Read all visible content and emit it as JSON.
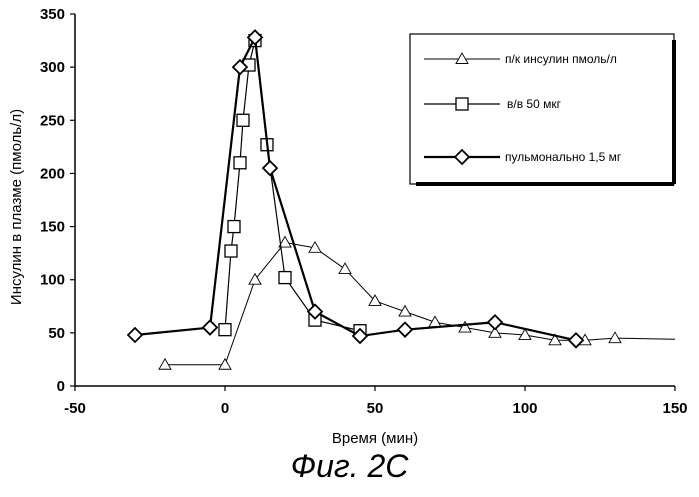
{
  "caption": "Фиг. 2С",
  "chart_data": {
    "type": "line",
    "xlabel": "Время (мин)",
    "ylabel": "Инсулин в плазме (пмоль/л)",
    "xlim": [
      -50,
      150
    ],
    "ylim": [
      0,
      350
    ],
    "xticks": [
      "-50",
      "0",
      "50",
      "100",
      "150"
    ],
    "yticks": [
      "0",
      "50",
      "100",
      "150",
      "200",
      "250",
      "300",
      "350"
    ],
    "grid": false,
    "legend_position": "top-right",
    "series": [
      {
        "name": "п/к инсулин пмоль/л",
        "marker": "triangle",
        "stroke_width": 1,
        "x": [
          -20,
          0,
          10,
          20,
          30,
          40,
          50,
          60,
          70,
          80,
          90,
          100,
          110,
          120,
          130
        ],
        "y": [
          20,
          20,
          100,
          135,
          130,
          110,
          80,
          70,
          60,
          55,
          50,
          48,
          43,
          43,
          45
        ],
        "tail_line_to": [
          150,
          44
        ]
      },
      {
        "name": "в/в 50 мкг",
        "marker": "square",
        "stroke_width": 1.2,
        "x": [
          0,
          2,
          3,
          5,
          6,
          8,
          10,
          14,
          20,
          30,
          45
        ],
        "y": [
          53,
          127,
          150,
          210,
          250,
          302,
          325,
          227,
          102,
          62,
          52
        ]
      },
      {
        "name": "пульмонально 1,5 мг",
        "marker": "diamond",
        "stroke_width": 2.2,
        "x": [
          -30,
          -5,
          5,
          10,
          15,
          30,
          45,
          60,
          90,
          117
        ],
        "y": [
          48,
          55,
          300,
          328,
          205,
          70,
          47,
          53,
          60,
          43
        ]
      }
    ]
  }
}
